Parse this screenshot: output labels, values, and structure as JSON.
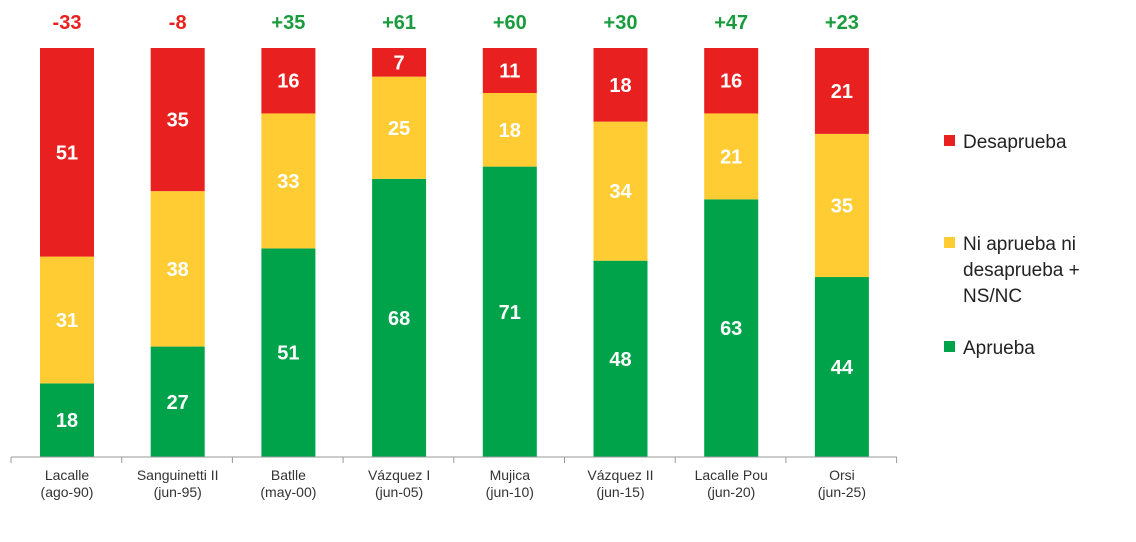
{
  "chart_data": {
    "type": "bar",
    "stacked": true,
    "categories": [
      [
        "Lacalle",
        "(ago-90)"
      ],
      [
        "Sanguinetti II",
        "(jun-95)"
      ],
      [
        "Batlle",
        "(may-00)"
      ],
      [
        "Vázquez I",
        "(jun-05)"
      ],
      [
        "Mujica",
        "(jun-10)"
      ],
      [
        "Vázquez II",
        "(jun-15)"
      ],
      [
        "Lacalle Pou",
        "(jun-20)"
      ],
      [
        "Orsi",
        "(jun-25)"
      ]
    ],
    "series": [
      {
        "name": "Aprueba",
        "color": "#00a34a",
        "values": [
          18,
          27,
          51,
          68,
          71,
          48,
          63,
          44
        ]
      },
      {
        "name": "Ni aprueba ni desaprueba + NS/NC",
        "color": "#ffcc33",
        "values": [
          31,
          38,
          33,
          25,
          18,
          34,
          21,
          35
        ]
      },
      {
        "name": "Desaprueba",
        "color": "#e8201f",
        "values": [
          51,
          35,
          16,
          7,
          11,
          18,
          16,
          21
        ]
      }
    ],
    "net_balance": [
      "-33",
      "-8",
      "+35",
      "+61",
      "+60",
      "+30",
      "+47",
      "+23"
    ],
    "net_colors": {
      "positive": "#1a9c3e",
      "negative": "#e8201f"
    },
    "ylim": [
      0,
      100
    ],
    "grid": false,
    "legend_position": "right",
    "legend": [
      {
        "label": "Desaprueba",
        "color": "#e8201f"
      },
      {
        "label": "Ni aprueba ni desaprueba + NS/NC",
        "color": "#ffcc33"
      },
      {
        "label": "Aprueba",
        "color": "#00a34a"
      }
    ]
  }
}
